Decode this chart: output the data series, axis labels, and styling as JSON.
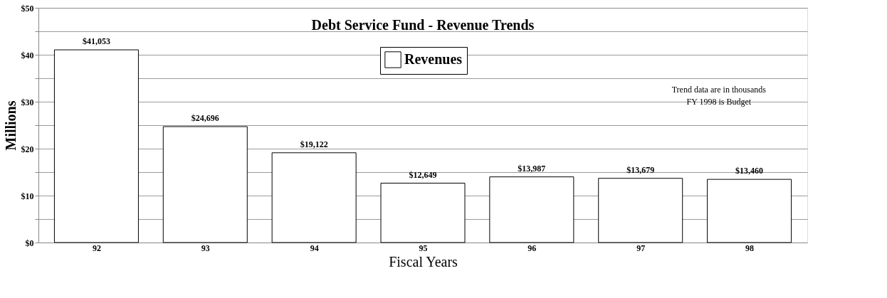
{
  "chart_data": {
    "type": "bar",
    "title": "Debt Service Fund - Revenue Trends",
    "xlabel": "Fiscal Years",
    "ylabel": "Millions",
    "categories": [
      "92",
      "93",
      "94",
      "95",
      "96",
      "97",
      "98"
    ],
    "series": [
      {
        "name": "Revenues",
        "color": "#ffffff",
        "values": [
          41.053,
          24.696,
          19.122,
          12.649,
          13.987,
          13.679,
          13.46
        ]
      }
    ],
    "value_labels": [
      "$41,053",
      "$24,696",
      "$19,122",
      "$12,649",
      "$13,987",
      "$13,679",
      "$13,460"
    ],
    "ylim": [
      0,
      50
    ],
    "yticks": [
      {
        "value": 0,
        "label": "$0"
      },
      {
        "value": 5,
        "label": null
      },
      {
        "value": 10,
        "label": "$10"
      },
      {
        "value": 15,
        "label": null
      },
      {
        "value": 20,
        "label": "$20"
      },
      {
        "value": 25,
        "label": null
      },
      {
        "value": 30,
        "label": "$30"
      },
      {
        "value": 35,
        "label": null
      },
      {
        "value": 40,
        "label": "$40"
      },
      {
        "value": 45,
        "label": null
      },
      {
        "value": 50,
        "label": "$50"
      }
    ],
    "grid": "y",
    "legend": "top",
    "annotations": [
      "Trend data are in thousands",
      "FY 1998 is Budget"
    ]
  }
}
